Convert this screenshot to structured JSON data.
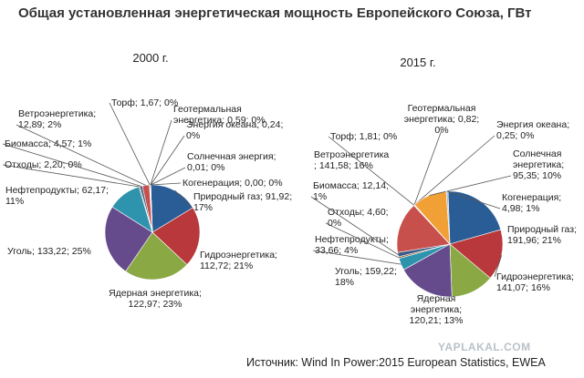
{
  "title": "Общая установленная энергетическая мощность Европейского Союза, ГВт",
  "source": "Источник: Wind In Power:2015 European Statistics, EWEA",
  "watermark": "YAPLAKAL.COM",
  "colors": {
    "gas": "#2a5d96",
    "hydro": "#b8383c",
    "nuclear": "#8aa844",
    "coal": "#654a8c",
    "oil": "#2e93ad",
    "waste": "#8a5a2e",
    "biomass": "#3a5b87",
    "wind": "#c8504c",
    "peat": "#b8b8b8",
    "geothermal": "#9a8fc0",
    "ocean": "#7db7c9",
    "solar": "#f1a036",
    "cogeneration": "#a8bfd9",
    "line": "#555555"
  },
  "chart_data": [
    {
      "type": "pie",
      "title": "2000 г.",
      "slices": [
        {
          "key": "gas",
          "value": 91.92,
          "labels": [
            "Природный газ; 91,92;",
            "17%"
          ]
        },
        {
          "key": "hydro",
          "value": 112.72,
          "labels": [
            "Гидроэнергетика;",
            "112,72; 21%"
          ]
        },
        {
          "key": "nuclear",
          "value": 122.97,
          "labels": [
            "Ядерная энергетика;",
            "122,97; 23%"
          ]
        },
        {
          "key": "coal",
          "value": 133.22,
          "labels": [
            "Уголь; 133,22; 25%"
          ]
        },
        {
          "key": "oil",
          "value": 62.17,
          "labels": [
            "Нефтепродукты; 62,17;",
            "11%"
          ]
        },
        {
          "key": "waste",
          "value": 2.2,
          "labels": [
            "Отходы; 2,20; 0%"
          ]
        },
        {
          "key": "biomass",
          "value": 4.57,
          "labels": [
            "Биомасса; 4,57; 1%"
          ]
        },
        {
          "key": "wind",
          "value": 12.89,
          "labels": [
            "Ветроэнергетика;",
            "12,89; 2%"
          ]
        },
        {
          "key": "peat",
          "value": 1.67,
          "labels": [
            "Торф; 1,67; 0%"
          ]
        },
        {
          "key": "geothermal",
          "value": 0.59,
          "labels": [
            "Геотермальная",
            "энергетика; 0,59; 0%"
          ]
        },
        {
          "key": "ocean",
          "value": 0.24,
          "labels": [
            "Энергия океана; 0,24;",
            "0%"
          ]
        },
        {
          "key": "solar",
          "value": 0.01,
          "labels": [
            "Солнечная энергия;",
            "0,01; 0%"
          ]
        },
        {
          "key": "cogeneration",
          "value": 0.0,
          "labels": [
            "Когенерация; 0,00; 0%"
          ]
        }
      ]
    },
    {
      "type": "pie",
      "title": "2015 г.",
      "slices": [
        {
          "key": "gas",
          "value": 191.96,
          "labels": [
            "Природный газ;",
            "191,96; 21%"
          ]
        },
        {
          "key": "hydro",
          "value": 141.07,
          "labels": [
            "Гидроэнергетика;",
            "141,07; 16%"
          ]
        },
        {
          "key": "nuclear",
          "value": 120.21,
          "labels": [
            "Ядерная",
            "энергетика;",
            "120,21; 13%"
          ]
        },
        {
          "key": "coal",
          "value": 159.22,
          "labels": [
            "Уголь; 159,22;",
            "18%"
          ]
        },
        {
          "key": "oil",
          "value": 33.66,
          "labels": [
            "Нефтепродукты;",
            "33,66; 4%"
          ]
        },
        {
          "key": "waste",
          "value": 4.6,
          "labels": [
            "Отходы; 4,60;",
            "0%"
          ]
        },
        {
          "key": "biomass",
          "value": 12.14,
          "labels": [
            "Биомасса; 12,14;",
            "1%"
          ]
        },
        {
          "key": "wind",
          "value": 141.58,
          "labels": [
            "Ветроэнергетика",
            "; 141,58; 16%"
          ]
        },
        {
          "key": "peat",
          "value": 1.81,
          "labels": [
            "Торф; 1,81; 0%"
          ]
        },
        {
          "key": "geothermal",
          "value": 0.82,
          "labels": [
            "Геотермальная",
            "энергетика; 0,82;",
            "0%"
          ]
        },
        {
          "key": "ocean",
          "value": 0.25,
          "labels": [
            "Энергия океана;",
            "0,25; 0%"
          ]
        },
        {
          "key": "solar",
          "value": 95.35,
          "labels": [
            "Солнечная",
            "энергетика;",
            "95,35; 10%"
          ]
        },
        {
          "key": "cogeneration",
          "value": 4.98,
          "labels": [
            "Когенерация;",
            "4,98; 1%"
          ]
        }
      ]
    }
  ]
}
